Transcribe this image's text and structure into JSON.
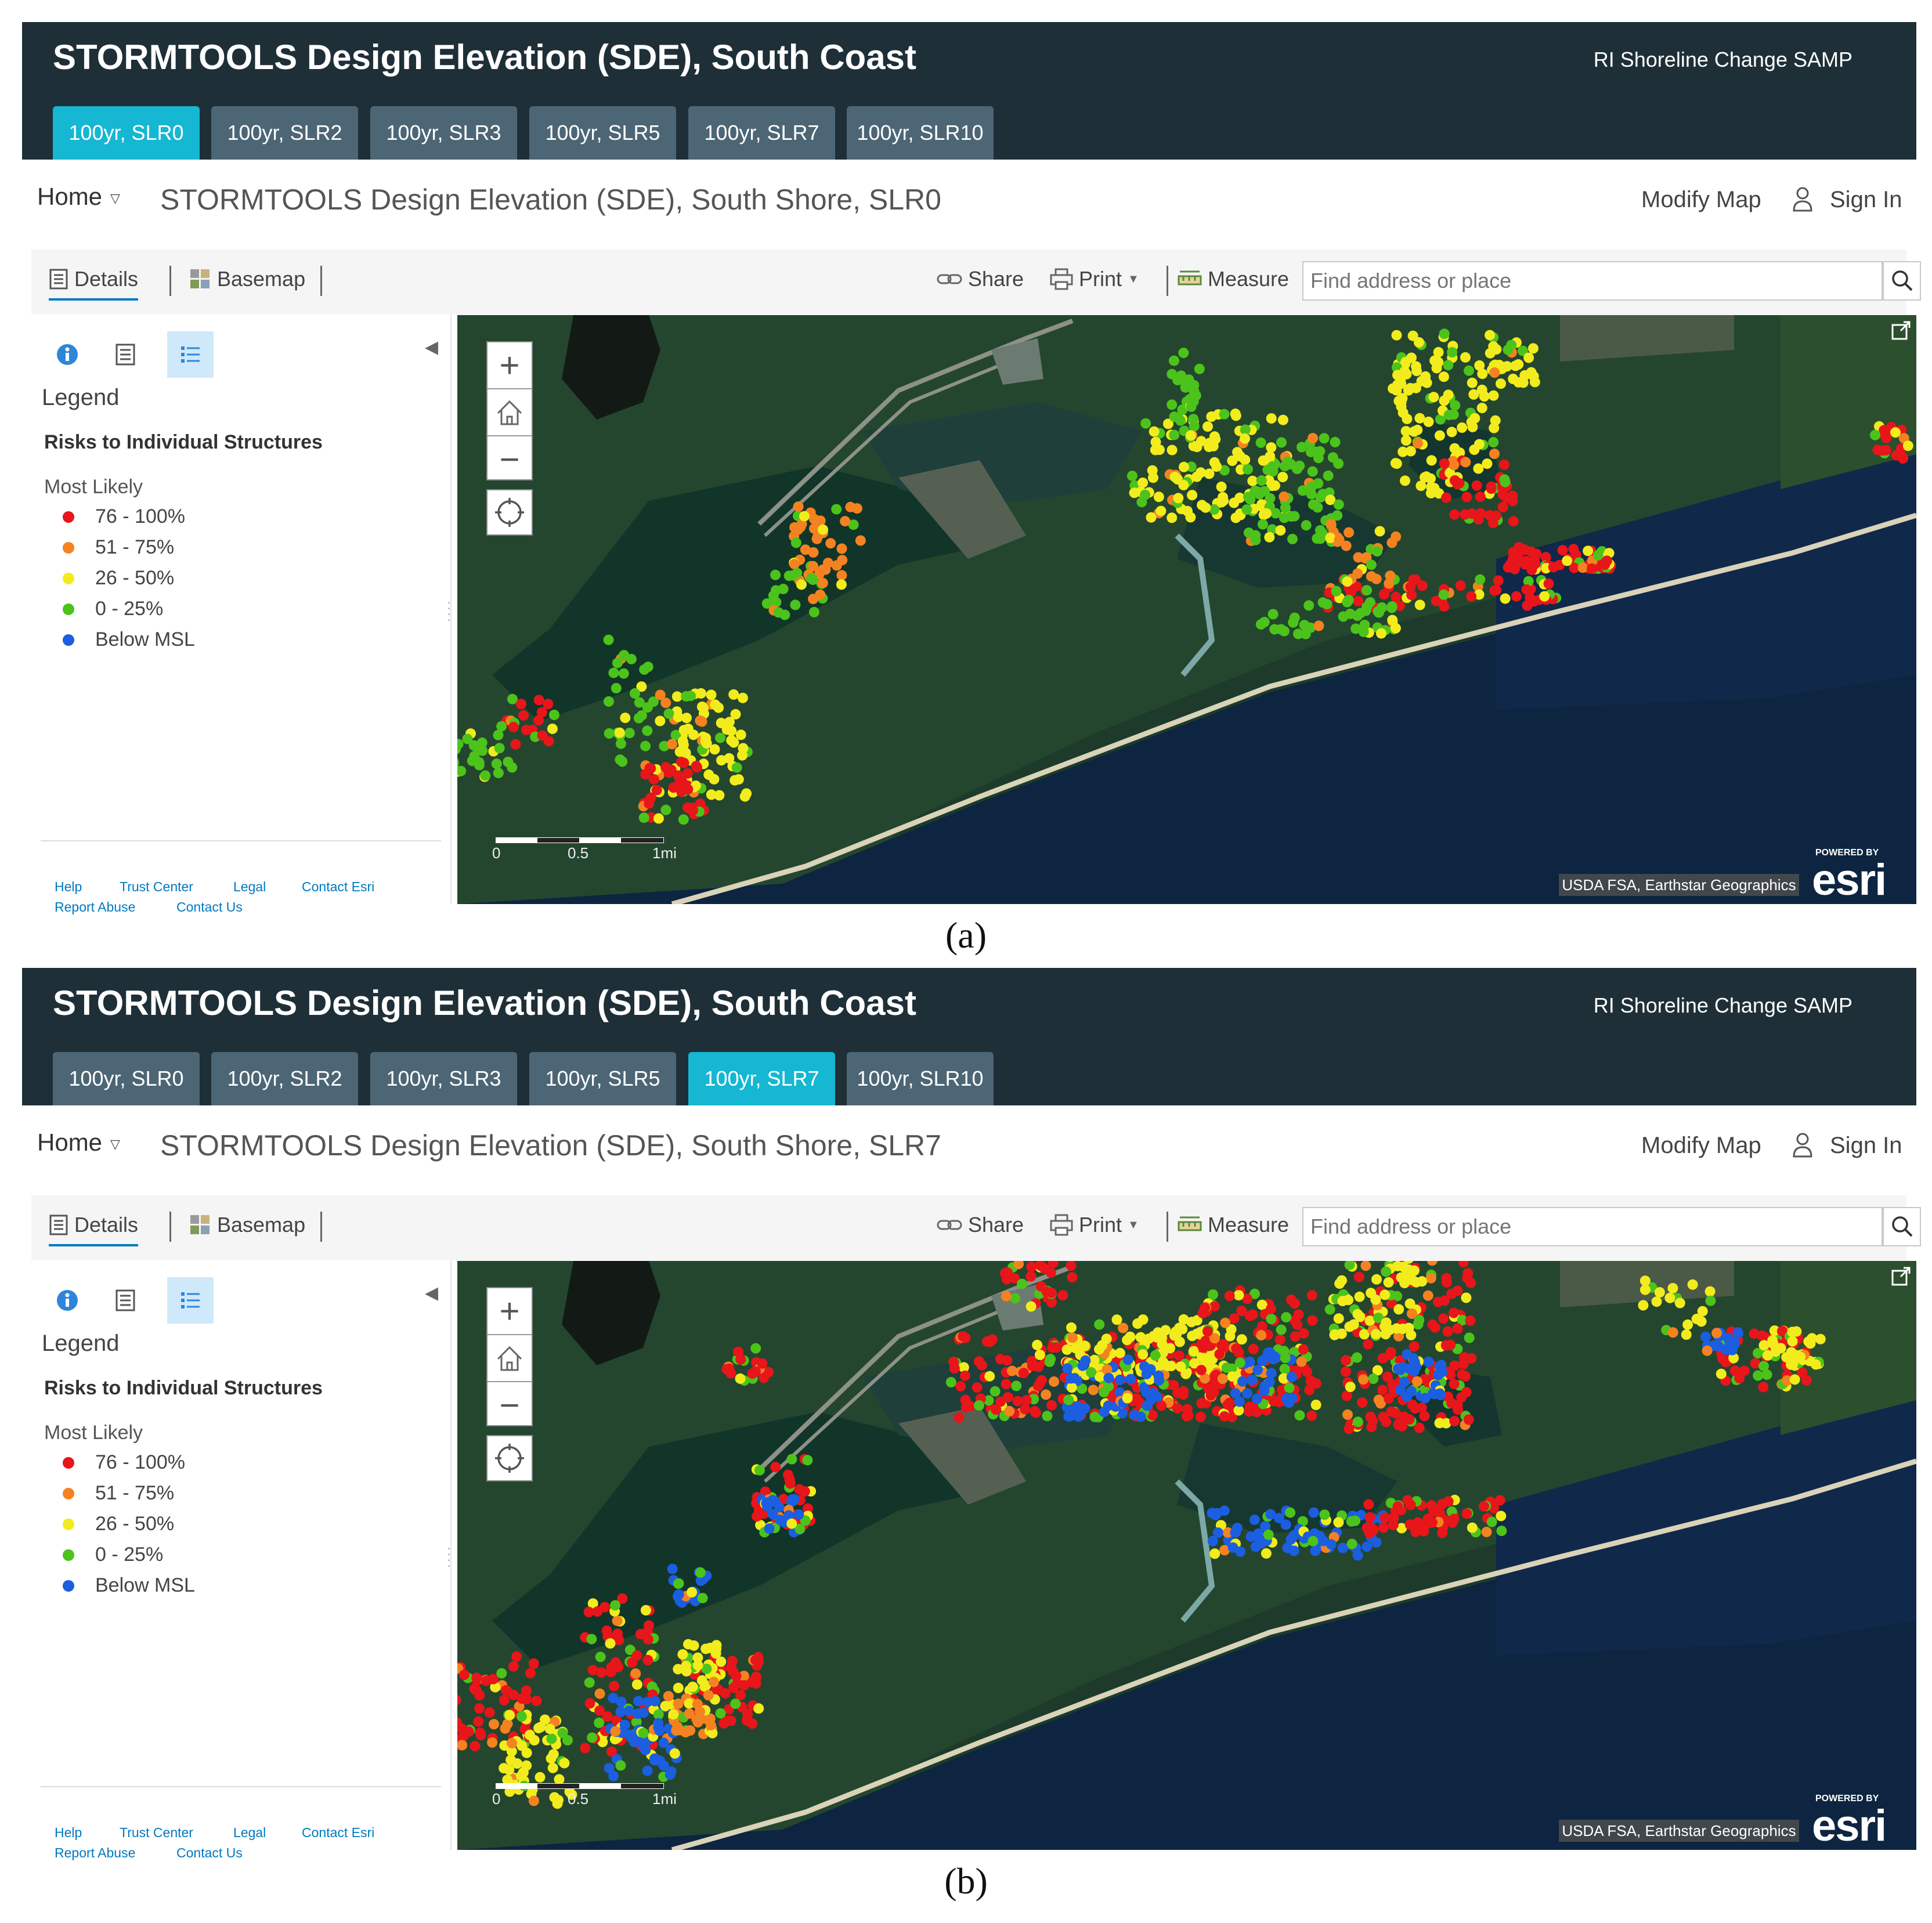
{
  "panels": [
    {
      "id": "a",
      "app_title": "STORMTOOLS Design Elevation (SDE), South Coast",
      "header_right": "RI Shoreline Change SAMP",
      "tabs": [
        {
          "label": "100yr, SLR0",
          "active": true
        },
        {
          "label": "100yr, SLR2",
          "active": false
        },
        {
          "label": "100yr, SLR3",
          "active": false
        },
        {
          "label": "100yr, SLR5",
          "active": false
        },
        {
          "label": "100yr, SLR7",
          "active": false
        },
        {
          "label": "100yr, SLR10",
          "active": false
        }
      ],
      "nav": {
        "home": "Home",
        "map_title": "STORMTOOLS Design Elevation (SDE), South Shore, SLR0",
        "modify": "Modify Map",
        "signin": "Sign In"
      },
      "toolbar": {
        "details": "Details",
        "basemap": "Basemap",
        "share": "Share",
        "print": "Print",
        "measure": "Measure",
        "search_placeholder": "Find address or place"
      },
      "legend": {
        "heading": "Legend",
        "layer": "Risks to Individual Structures",
        "subheading": "Most Likely",
        "items": [
          {
            "label": "76 - 100%",
            "color": "#e8151b"
          },
          {
            "label": "51 - 75%",
            "color": "#f58220"
          },
          {
            "label": "26 - 50%",
            "color": "#f2ec1d"
          },
          {
            "label": "0 - 25%",
            "color": "#4cc31b"
          },
          {
            "label": "Below MSL",
            "color": "#1c5ee0"
          }
        ]
      },
      "footer": {
        "help": "Help",
        "trust": "Trust Center",
        "legal": "Legal",
        "contact_esri": "Contact Esri",
        "report": "Report Abuse",
        "contact": "Contact Us"
      },
      "map": {
        "scale_labels": [
          "0",
          "0.5",
          "1mi"
        ],
        "attribution": "USDA FSA, Earthstar Geographics",
        "powered_by": "POWERED BY",
        "esri": "esri"
      }
    },
    {
      "id": "b",
      "app_title": "STORMTOOLS Design Elevation (SDE), South Coast",
      "header_right": "RI Shoreline Change SAMP",
      "tabs": [
        {
          "label": "100yr, SLR0",
          "active": false
        },
        {
          "label": "100yr, SLR2",
          "active": false
        },
        {
          "label": "100yr, SLR3",
          "active": false
        },
        {
          "label": "100yr, SLR5",
          "active": false
        },
        {
          "label": "100yr, SLR7",
          "active": true
        },
        {
          "label": "100yr, SLR10",
          "active": false
        }
      ],
      "nav": {
        "home": "Home",
        "map_title": "STORMTOOLS Design Elevation (SDE), South Shore, SLR7",
        "modify": "Modify Map",
        "signin": "Sign In"
      },
      "toolbar": {
        "details": "Details",
        "basemap": "Basemap",
        "share": "Share",
        "print": "Print",
        "measure": "Measure",
        "search_placeholder": "Find address or place"
      },
      "legend": {
        "heading": "Legend",
        "layer": "Risks to Individual Structures",
        "subheading": "Most Likely",
        "items": [
          {
            "label": "76 - 100%",
            "color": "#e8151b"
          },
          {
            "label": "51 - 75%",
            "color": "#f58220"
          },
          {
            "label": "26 - 50%",
            "color": "#f2ec1d"
          },
          {
            "label": "0 - 25%",
            "color": "#4cc31b"
          },
          {
            "label": "Below MSL",
            "color": "#1c5ee0"
          }
        ]
      },
      "footer": {
        "help": "Help",
        "trust": "Trust Center",
        "legal": "Legal",
        "contact_esri": "Contact Esri",
        "report": "Report Abuse",
        "contact": "Contact Us"
      },
      "map": {
        "scale_labels": [
          "0",
          "0.5",
          "1mi"
        ],
        "attribution": "USDA FSA, Earthstar Geographics",
        "powered_by": "POWERED BY",
        "esri": "esri"
      }
    }
  ],
  "captions": [
    "(a)",
    "(b)"
  ]
}
